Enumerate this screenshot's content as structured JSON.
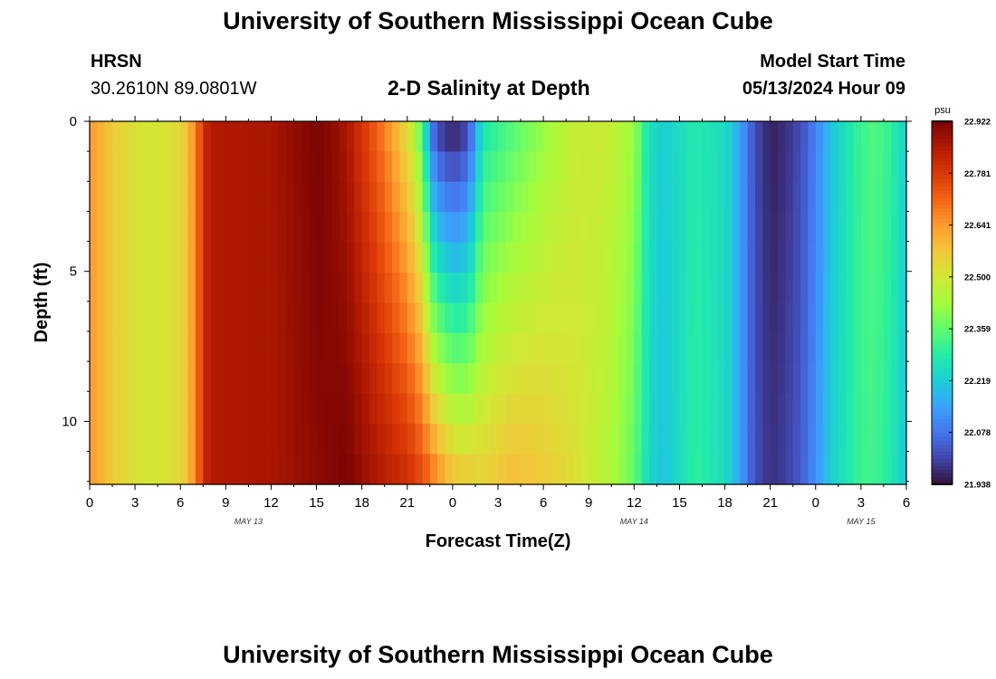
{
  "page": {
    "title_top": "University of Southern Mississippi Ocean Cube",
    "title_bottom": "University of Southern Mississippi Ocean Cube",
    "station": "HRSN",
    "coords": "30.2610N  89.0801W",
    "subtitle": "2-D Salinity at Depth",
    "model_label": "Model Start Time",
    "model_time": "05/13/2024 Hour 09"
  },
  "colors": {
    "colormap": [
      "#30123b",
      "#4145ab",
      "#4675ed",
      "#39a2fc",
      "#1bcfd4",
      "#24eca6",
      "#61fc6c",
      "#a4fc3b",
      "#d1e834",
      "#f3c63a",
      "#fe9b2d",
      "#f36315",
      "#d93806",
      "#b11901",
      "#7a0403"
    ]
  },
  "chart_data": {
    "type": "heatmap",
    "xlabel": "Forecast Time(Z)",
    "ylabel": "Depth (ft)",
    "x_tick_labels": [
      "0",
      "3",
      "6",
      "9",
      "12",
      "15",
      "18",
      "21",
      "0",
      "3",
      "6",
      "9",
      "12",
      "15",
      "18",
      "21",
      "0",
      "3",
      "6"
    ],
    "date_labels": [
      {
        "label": "MAY 13",
        "tick_index": 3.5
      },
      {
        "label": "MAY 14",
        "tick_index": 12
      },
      {
        "label": "MAY 15",
        "tick_index": 17
      }
    ],
    "x_range_hours": [
      0,
      54
    ],
    "y_ticks": [
      0,
      5,
      10
    ],
    "y_range_ft": [
      0,
      12.1
    ],
    "depth_levels": 12,
    "colorbar": {
      "unit": "psu",
      "min": 21.938,
      "max": 22.922,
      "labels": [
        "22.922",
        "22.781",
        "22.641",
        "22.500",
        "22.359",
        "22.219",
        "22.078",
        "21.938"
      ]
    },
    "surface_profile": [
      [
        0,
        22.64
      ],
      [
        2,
        22.54
      ],
      [
        4,
        22.5
      ],
      [
        6,
        22.53
      ],
      [
        7,
        22.66
      ],
      [
        7.5,
        22.8
      ],
      [
        8,
        22.85
      ],
      [
        12,
        22.86
      ],
      [
        15,
        22.92
      ],
      [
        16,
        22.9
      ],
      [
        17,
        22.86
      ],
      [
        19,
        22.72
      ],
      [
        20,
        22.63
      ],
      [
        21,
        22.53
      ],
      [
        22,
        22.35
      ],
      [
        22.5,
        22.12
      ],
      [
        23,
        22.02
      ],
      [
        24,
        21.97
      ],
      [
        25,
        22.02
      ],
      [
        26,
        22.28
      ],
      [
        28,
        22.35
      ],
      [
        30,
        22.42
      ],
      [
        32,
        22.48
      ],
      [
        34,
        22.49
      ],
      [
        36,
        22.42
      ],
      [
        37,
        22.25
      ],
      [
        38,
        22.22
      ],
      [
        40,
        22.28
      ],
      [
        42,
        22.25
      ],
      [
        43,
        22.15
      ],
      [
        44,
        22.02
      ],
      [
        45,
        21.96
      ],
      [
        46,
        21.98
      ],
      [
        47,
        22.02
      ],
      [
        48,
        22.1
      ],
      [
        49,
        22.2
      ],
      [
        51,
        22.32
      ],
      [
        52,
        22.34
      ],
      [
        53,
        22.3
      ],
      [
        54,
        22.22
      ]
    ],
    "bottom_profile": [
      [
        0,
        22.64
      ],
      [
        2,
        22.54
      ],
      [
        4,
        22.5
      ],
      [
        6,
        22.53
      ],
      [
        7,
        22.66
      ],
      [
        7.5,
        22.8
      ],
      [
        8,
        22.85
      ],
      [
        12,
        22.86
      ],
      [
        15,
        22.9
      ],
      [
        17,
        22.92
      ],
      [
        19,
        22.85
      ],
      [
        21,
        22.8
      ],
      [
        22,
        22.74
      ],
      [
        23,
        22.64
      ],
      [
        24,
        22.56
      ],
      [
        26,
        22.54
      ],
      [
        28,
        22.58
      ],
      [
        30,
        22.56
      ],
      [
        32,
        22.52
      ],
      [
        34,
        22.46
      ],
      [
        35,
        22.42
      ],
      [
        36,
        22.36
      ],
      [
        37,
        22.24
      ],
      [
        38,
        22.2
      ],
      [
        40,
        22.3
      ],
      [
        42,
        22.25
      ],
      [
        43,
        22.15
      ],
      [
        44,
        22.02
      ],
      [
        45,
        21.98
      ],
      [
        46,
        22.0
      ],
      [
        47,
        22.04
      ],
      [
        48,
        22.12
      ],
      [
        49,
        22.22
      ],
      [
        51,
        22.32
      ],
      [
        52,
        22.32
      ],
      [
        53,
        22.28
      ],
      [
        54,
        22.2
      ]
    ]
  }
}
